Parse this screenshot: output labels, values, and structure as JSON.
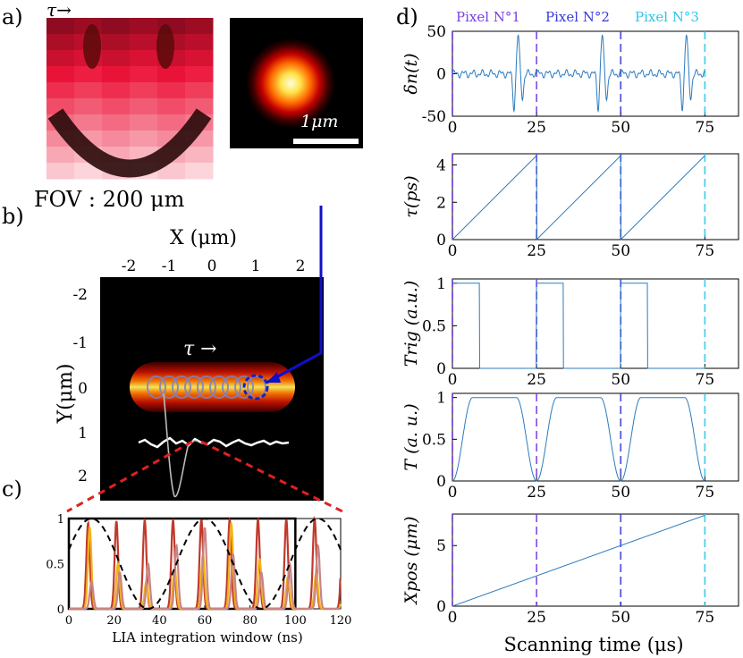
{
  "panel_labels": {
    "a": "a)",
    "b": "b)",
    "c": "c)",
    "d": "d)"
  },
  "panel_a": {
    "tau_label": "τ→",
    "fov_label": "FOV : 200 μm",
    "scalebar_label": "1μm"
  },
  "panel_b": {
    "x_label": "X (μm)",
    "y_label": "Y(μm)",
    "x_ticks": [
      "-2",
      "-1",
      "0",
      "1",
      "2"
    ],
    "y_ticks": [
      "-2",
      "-1",
      "0",
      "1",
      "2"
    ],
    "tau_label": "τ →"
  },
  "colors": {
    "pixel1": "#7b3fe4",
    "pixel2": "#3a3ad8",
    "pixel3": "#31c6e8",
    "trace": "#2b7bbf"
  },
  "chart_data": [
    {
      "id": "c",
      "type": "line",
      "xlabel": "LIA integration window (ns)",
      "ylabel": "",
      "xlim": [
        0,
        120
      ],
      "ylim": [
        0,
        1
      ],
      "x_ticks": [
        "0",
        "20",
        "40",
        "60",
        "80",
        "100",
        "120"
      ],
      "y_ticks": [
        "0",
        "0.5",
        "1"
      ],
      "integration_window": [
        0,
        100
      ],
      "series": [
        {
          "kind": "pulse_train",
          "color": "#c0392b",
          "period": 12.5,
          "start": 8.5,
          "width": 1.1,
          "amplitudes": [
            0.95,
            0.97,
            0.98,
            0.98,
            0.99,
            0.99,
            0.99,
            0.99,
            1.0,
            1.0
          ]
        },
        {
          "kind": "pulse_train",
          "color": "#f2b21a",
          "period": 12.5,
          "start": 9.2,
          "width": 1.1,
          "amplitudes": [
            0.9,
            0.5,
            0.3,
            0.45,
            0.6,
            0.95,
            0.55,
            0.35,
            0.4,
            0.9
          ]
        },
        {
          "kind": "pulse_train",
          "color": "#c98484",
          "period": 12.5,
          "start": 10.0,
          "width": 1.1,
          "amplitudes": [
            0.3,
            0.4,
            0.5,
            0.7,
            0.9,
            0.6,
            0.4,
            0.5,
            0.7,
            0.85
          ]
        },
        {
          "kind": "cosine",
          "color": "#000000",
          "dashed": true,
          "period": 50,
          "phase_x": 10,
          "offset": 0.5,
          "amp": 0.5
        }
      ]
    },
    {
      "id": "d",
      "type": "line",
      "xlabel": "Scanning time (μs)",
      "xlim": [
        0,
        85
      ],
      "x_ticks": [
        0,
        25,
        50,
        75
      ],
      "legend": [
        "Pixel N°1",
        "Pixel N°2",
        "Pixel N°3"
      ],
      "pixel_boundaries": [
        0,
        25,
        50,
        75
      ],
      "subplots": [
        {
          "ylabel": "δn(t)",
          "ylim": [
            -50,
            50
          ],
          "y_ticks": [
            "-50",
            "0",
            "50"
          ],
          "signal": "delta_n",
          "period": 25,
          "peak_at": 19.5,
          "amplitude": 45
        },
        {
          "ylabel": "τ(ps)",
          "ylim": [
            0,
            4.6
          ],
          "y_ticks": [
            "0",
            "2",
            "4"
          ],
          "signal": "sawtooth",
          "period": 25,
          "max": 4.5
        },
        {
          "ylabel": "Trig (a.u.)",
          "ylim": [
            0,
            1.05
          ],
          "y_ticks": [
            "0",
            "0.5",
            "1"
          ],
          "signal": "gate",
          "period": 25,
          "on_duration": 8
        },
        {
          "ylabel": "T (a. u.)",
          "ylim": [
            0,
            1.05
          ],
          "y_ticks": [
            "0",
            "0.5",
            "1"
          ],
          "signal": "trapezoid",
          "period": 25
        },
        {
          "ylabel": "Xpos (μm)",
          "ylim": [
            0,
            7.6
          ],
          "y_ticks": [
            "0",
            "5"
          ],
          "signal": "ramp",
          "max": 7.5
        }
      ]
    }
  ]
}
